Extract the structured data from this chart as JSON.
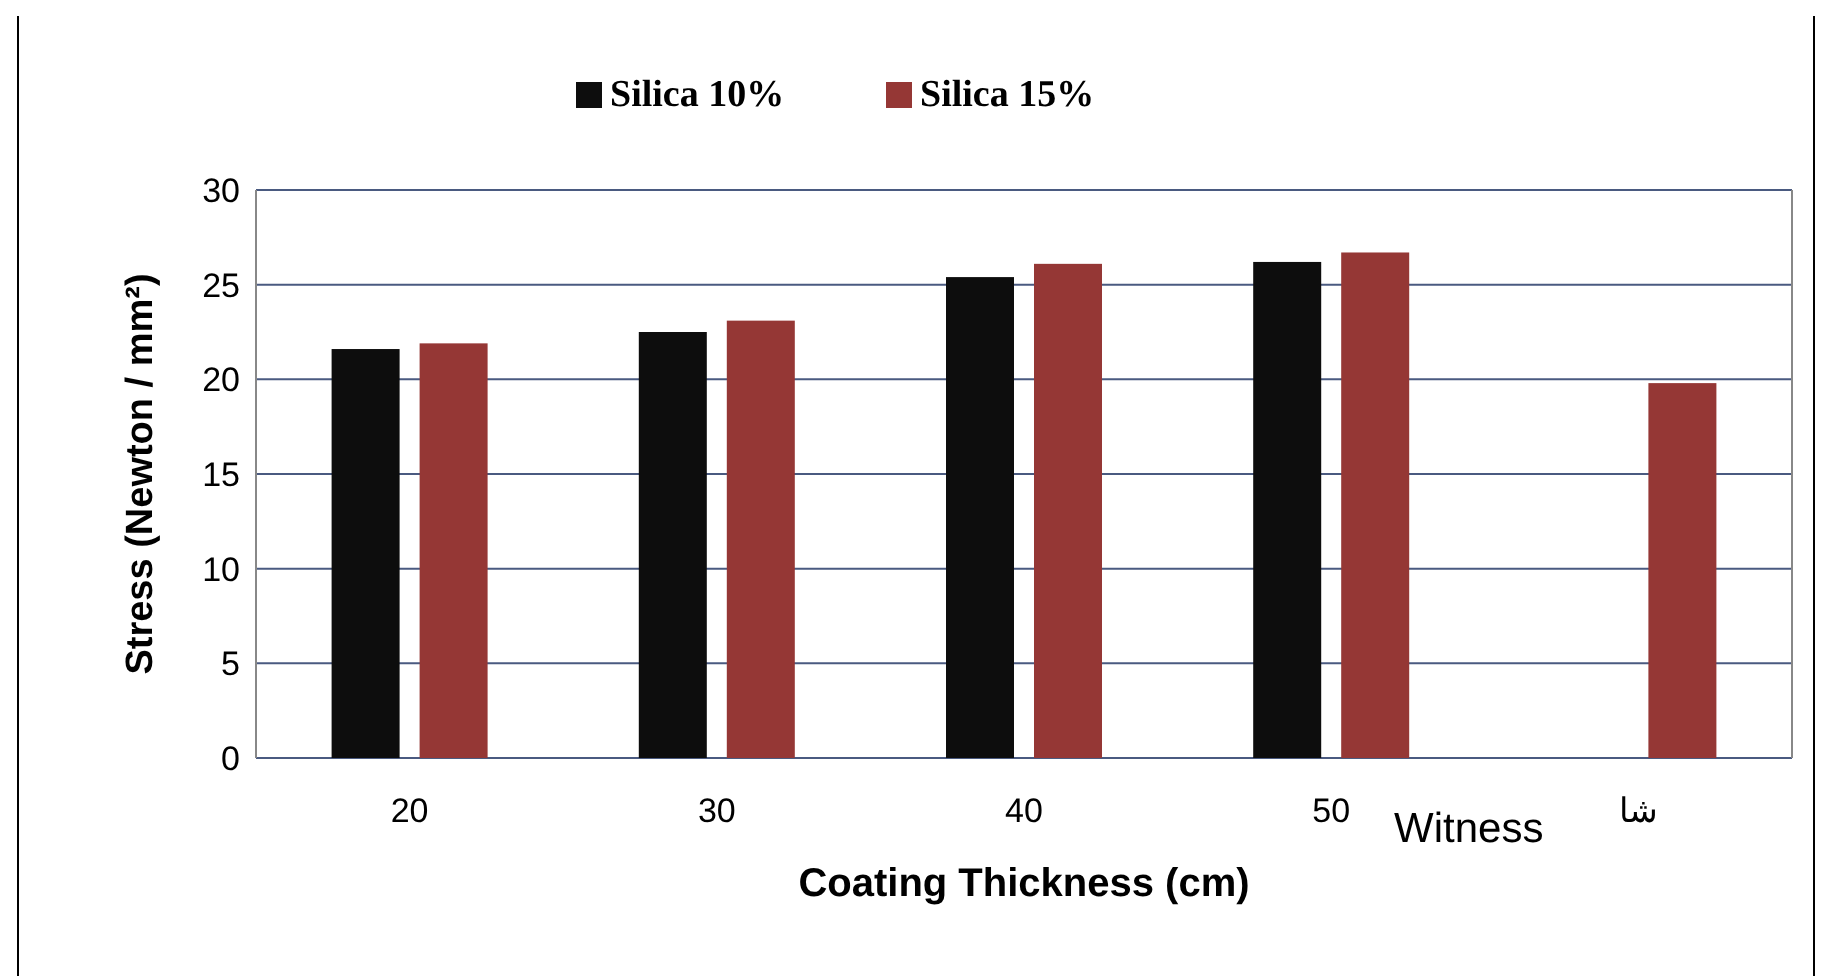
{
  "chart_data": {
    "type": "bar",
    "xlabel": "Coating Thickness (cm)",
    "ylabel": "Stress (Newton / mm²)",
    "categories": [
      "20",
      "30",
      "40",
      "50",
      "شا"
    ],
    "series": [
      {
        "name": "Silica 10%",
        "color": "#0d0d0d",
        "values": [
          21.6,
          22.5,
          25.4,
          26.2,
          null
        ]
      },
      {
        "name": "Silica 15%",
        "color": "#953735",
        "values": [
          21.9,
          23.1,
          26.1,
          26.7,
          19.8
        ]
      }
    ],
    "ylim": [
      0,
      30
    ],
    "yticks": [
      0,
      5,
      10,
      15,
      20,
      25,
      30
    ],
    "grid": "y",
    "legend": "top",
    "annotations": [
      "Witness"
    ]
  }
}
